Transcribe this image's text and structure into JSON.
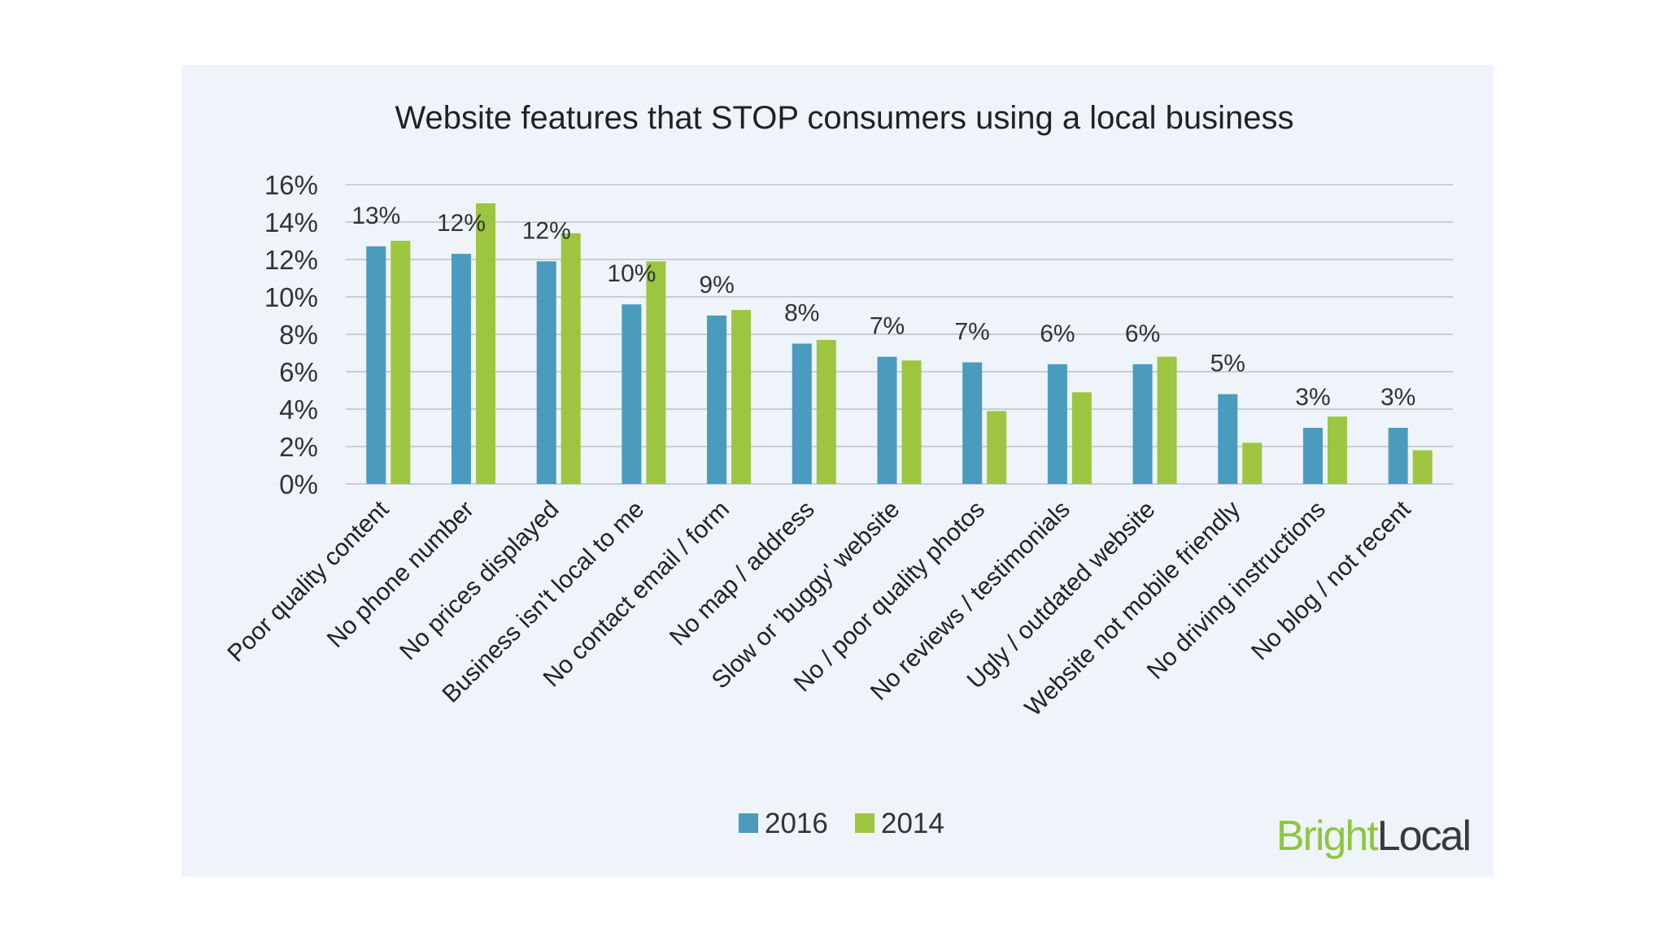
{
  "chart_data": {
    "type": "bar",
    "title": "Website features that STOP consumers using a local business",
    "xlabel": "",
    "ylabel": "",
    "ylim": [
      0,
      16
    ],
    "yticks": [
      "0%",
      "2%",
      "4%",
      "6%",
      "8%",
      "10%",
      "12%",
      "14%",
      "16%"
    ],
    "grid": true,
    "legend_position": "bottom",
    "categories": [
      "Poor quality content",
      "No phone number",
      "No prices displayed",
      "Business isn't local to me",
      "No contact email / form",
      "No map / address",
      "Slow or 'buggy' website",
      "No / poor quality photos",
      "No reviews / testimonials",
      "Ugly / outdated website",
      "Website not mobile friendly",
      "No driving instructions",
      "No blog / not recent"
    ],
    "series": [
      {
        "name": "2016",
        "color": "#4a9bbd",
        "values": [
          12.7,
          12.3,
          11.9,
          9.6,
          9.0,
          7.5,
          6.8,
          6.5,
          6.4,
          6.4,
          4.8,
          3.0,
          3.0
        ],
        "labels": [
          "13%",
          "12%",
          "12%",
          "10%",
          "9%",
          "8%",
          "7%",
          "7%",
          "6%",
          "6%",
          "5%",
          "3%",
          "3%"
        ]
      },
      {
        "name": "2014",
        "color": "#9dc53f",
        "values": [
          13.0,
          15.0,
          13.4,
          11.9,
          9.3,
          7.7,
          6.6,
          3.9,
          4.9,
          6.8,
          2.2,
          3.6,
          1.8
        ]
      }
    ]
  },
  "brand": {
    "part1": "Bright",
    "part2": "Local"
  }
}
